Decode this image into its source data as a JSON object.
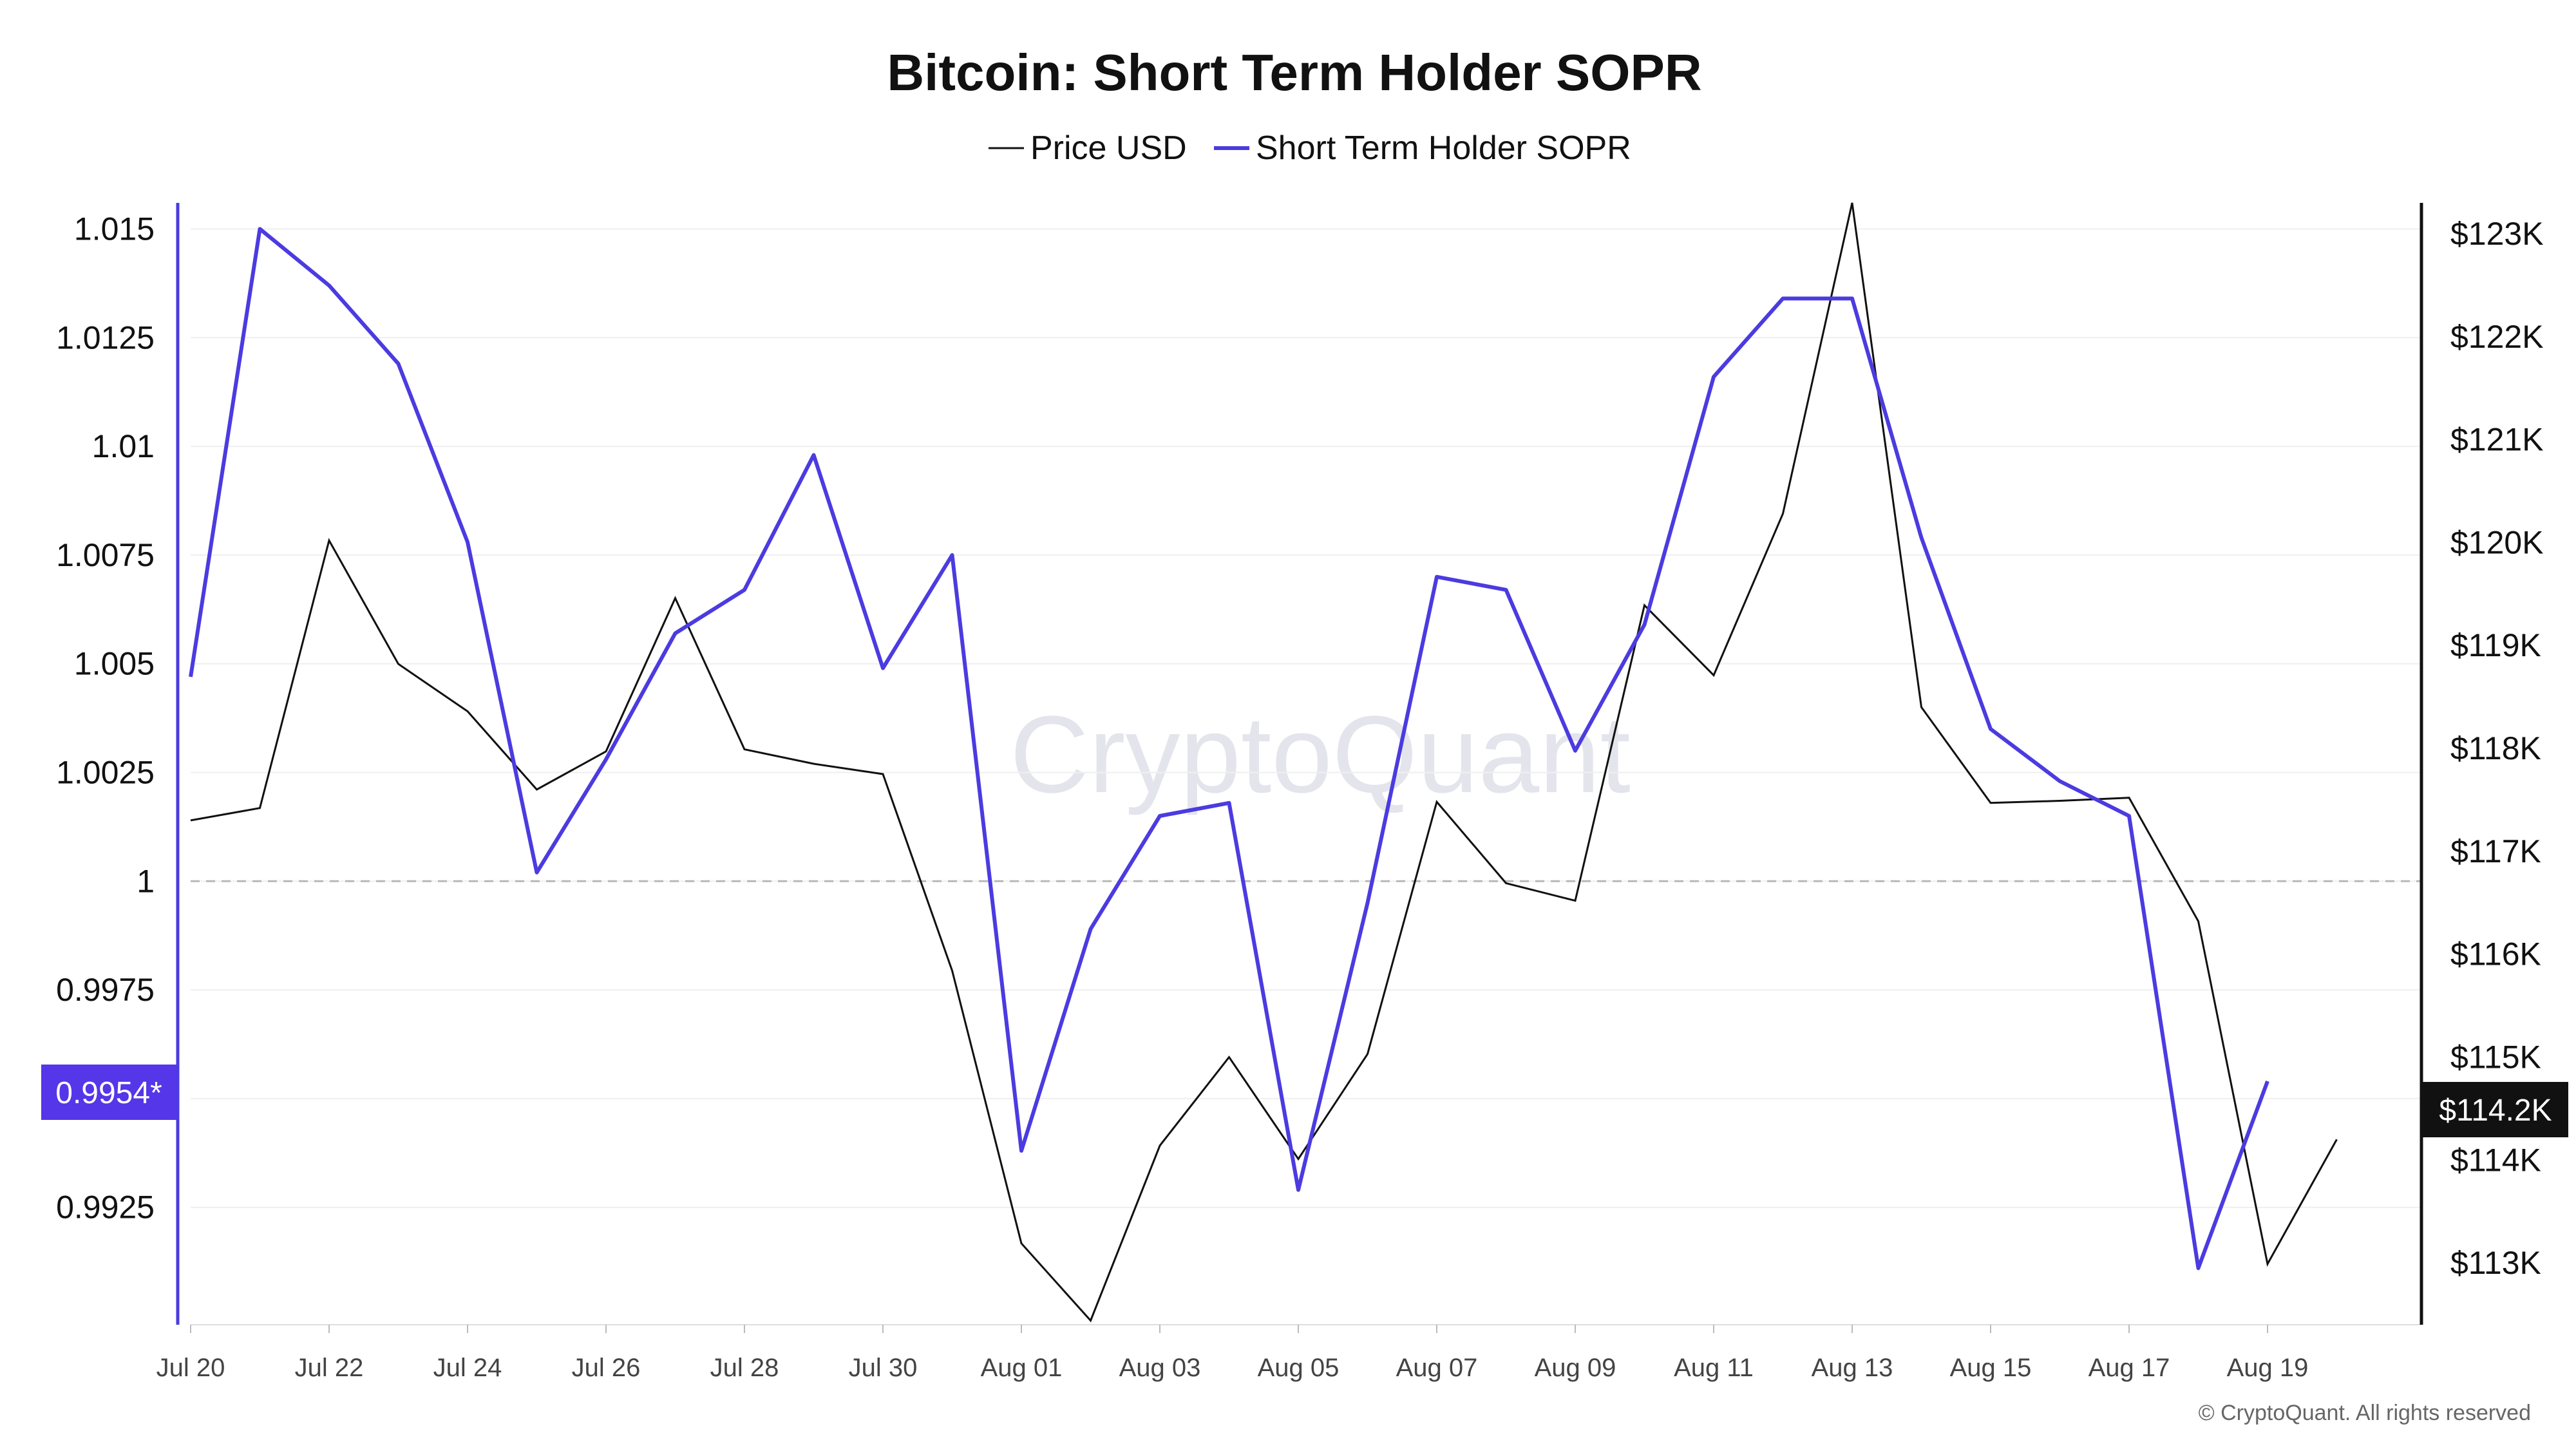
{
  "colors": {
    "price": "#111111",
    "sopr": "#4b3be0",
    "grid": "#efefef",
    "reference": "#b8b8b8",
    "badge_sopr": "#5536e8",
    "badge_price": "#111111",
    "watermark": "#e4e4ec"
  },
  "legend": {
    "price_label": "Price USD",
    "sopr_label": "Short Term Holder SOPR"
  },
  "watermark": "CryptoQuant",
  "copyright": "© CryptoQuant. All rights reserved",
  "badges": {
    "sopr_current": "0.9954*",
    "price_current": "$114.2K"
  },
  "chart_data": {
    "type": "line",
    "title": "Bitcoin: Short Term Holder SOPR",
    "x": [
      "Jul 20",
      "Jul 21",
      "Jul 22",
      "Jul 23",
      "Jul 24",
      "Jul 25",
      "Jul 26",
      "Jul 27",
      "Jul 28",
      "Jul 29",
      "Jul 30",
      "Jul 31",
      "Aug 01",
      "Aug 02",
      "Aug 03",
      "Aug 04",
      "Aug 05",
      "Aug 06",
      "Aug 07",
      "Aug 08",
      "Aug 09",
      "Aug 10",
      "Aug 11",
      "Aug 12",
      "Aug 13",
      "Aug 14",
      "Aug 15",
      "Aug 16",
      "Aug 17",
      "Aug 18",
      "Aug 19",
      "Aug 20"
    ],
    "x_ticks": [
      "Jul 20",
      "Jul 22",
      "Jul 24",
      "Jul 26",
      "Jul 28",
      "Jul 30",
      "Aug 01",
      "Aug 03",
      "Aug 05",
      "Aug 07",
      "Aug 09",
      "Aug 11",
      "Aug 13",
      "Aug 15",
      "Aug 17",
      "Aug 19"
    ],
    "series": [
      {
        "name": "Short Term Holder SOPR",
        "axis": "left",
        "values": [
          1.0047,
          1.015,
          1.0137,
          1.0119,
          1.0078,
          1.0002,
          1.0028,
          1.0057,
          1.0067,
          1.0098,
          1.0049,
          1.0075,
          0.9938,
          0.9989,
          1.0015,
          1.0018,
          0.9929,
          0.9995,
          1.007,
          1.0067,
          1.003,
          1.0059,
          1.0116,
          1.0134,
          1.0134,
          1.0079,
          1.0035,
          1.0023,
          1.0015,
          0.9911,
          0.9954,
          null
        ]
      },
      {
        "name": "Price USD",
        "axis": "right",
        "values": [
          117300,
          117420,
          120020,
          118820,
          118360,
          117600,
          117970,
          119460,
          117990,
          117850,
          117750,
          115840,
          113190,
          112440,
          114140,
          115000,
          114010,
          115030,
          117480,
          116690,
          116520,
          119390,
          118710,
          120280,
          123300,
          118400,
          117470,
          117490,
          117520,
          116320,
          112990,
          114200
        ]
      }
    ],
    "y_left": {
      "ylim": [
        0.9898,
        1.0156
      ],
      "ticks": [
        "1.015",
        "1.0125",
        "1.01",
        "1.0075",
        "1.005",
        "1.0025",
        "1",
        "0.9975",
        "0.995",
        "0.9925"
      ],
      "reference_line": 1
    },
    "y_right": {
      "ylim": [
        112400,
        123300
      ],
      "ticks": [
        "$123K",
        "$122K",
        "$121K",
        "$120K",
        "$119K",
        "$118K",
        "$117K",
        "$116K",
        "$115K",
        "$114K",
        "$113K"
      ]
    },
    "grid": true,
    "legend_position": "top-center"
  }
}
